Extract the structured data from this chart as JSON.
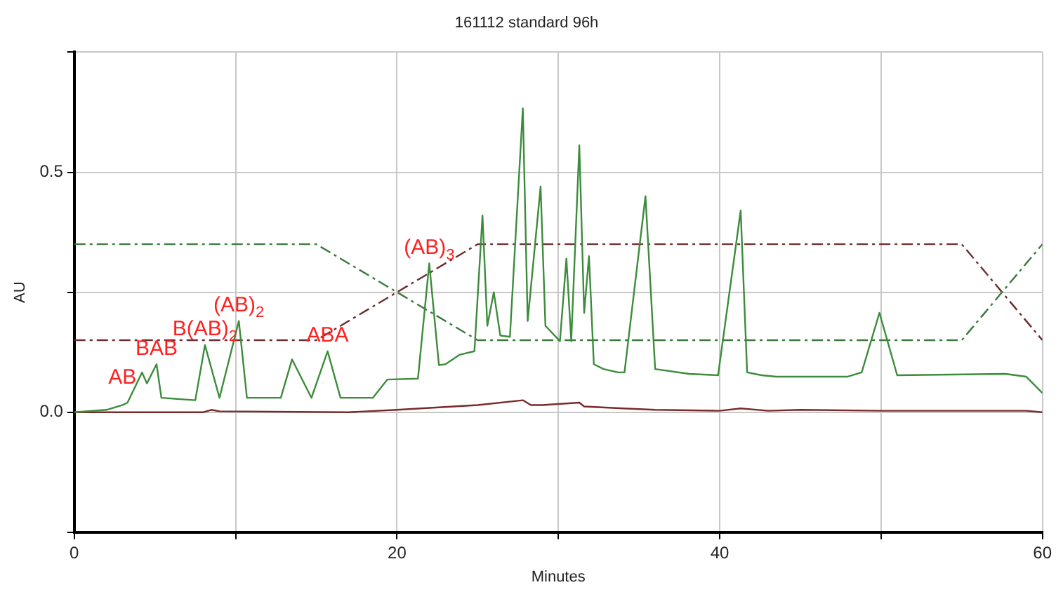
{
  "chart_data": {
    "type": "line",
    "title": "161112 standard 96h",
    "xlabel": "Minutes",
    "ylabel": "AU",
    "xlim": [
      0,
      60
    ],
    "ylim": [
      -0.25,
      0.75
    ],
    "xticks": [
      0,
      {
        "value": 10,
        "label": null
      },
      20,
      {
        "value": 30,
        "label": null
      },
      40,
      {
        "value": 50,
        "label": null
      },
      60
    ],
    "yticks": [
      {
        "value": -0.25,
        "label": null
      },
      {
        "value": 0,
        "label": "0.0"
      },
      {
        "value": 0.25,
        "label": null
      },
      0.5,
      {
        "value": 0.75,
        "label": null
      }
    ],
    "grid": true,
    "legend": false,
    "marker": "none",
    "series": [
      {
        "color": "#3c8c3c",
        "line_style": "solid",
        "x": [
          0,
          2,
          3,
          3.3,
          4.2,
          4.5,
          5.1,
          5.4,
          7.5,
          8.1,
          9.0,
          10.2,
          10.7,
          12.8,
          13.5,
          14.7,
          15.7,
          16.5,
          18.5,
          19.4,
          21.3,
          22.0,
          22.6,
          23,
          23.9,
          24.8,
          25.3,
          25.6,
          26.0,
          26.4,
          27.0,
          27.8,
          28.1,
          28.9,
          29.2,
          30.1,
          30.5,
          30.8,
          31.3,
          31.6,
          31.9,
          32.2,
          32.8,
          33.7,
          34.1,
          35.4,
          36.0,
          38.1,
          39.9,
          41.3,
          41.7,
          42.6,
          43.5,
          47.9,
          48.8,
          49.9,
          51.0,
          57.7,
          59.0,
          60
        ],
        "values": [
          0,
          0.005,
          0.015,
          0.02,
          0.083,
          0.06,
          0.1,
          0.03,
          0.025,
          0.14,
          0.03,
          0.19,
          0.03,
          0.03,
          0.11,
          0.03,
          0.127,
          0.03,
          0.03,
          0.068,
          0.07,
          0.31,
          0.098,
          0.1,
          0.12,
          0.127,
          0.41,
          0.18,
          0.25,
          0.16,
          0.157,
          0.633,
          0.19,
          0.47,
          0.18,
          0.148,
          0.32,
          0.148,
          0.556,
          0.207,
          0.325,
          0.1,
          0.09,
          0.083,
          0.083,
          0.45,
          0.09,
          0.08,
          0.077,
          0.42,
          0.083,
          0.077,
          0.074,
          0.074,
          0.083,
          0.207,
          0.077,
          0.08,
          0.074,
          0.04
        ]
      },
      {
        "color": "#7a2a2a",
        "line_style": "solid",
        "x": [
          0,
          8,
          8.5,
          9,
          17,
          20,
          25,
          27.8,
          28.3,
          29,
          31.3,
          31.6,
          34,
          36,
          40,
          41.3,
          43,
          45,
          50,
          59,
          60
        ],
        "values": [
          0,
          0,
          0.005,
          0.002,
          0,
          0.005,
          0.015,
          0.025,
          0.015,
          0.015,
          0.02,
          0.012,
          0.008,
          0.005,
          0.003,
          0.008,
          0.003,
          0.005,
          0.003,
          0.003,
          0
        ]
      },
      {
        "color": "#3a7a3a",
        "line_style": "dashed",
        "x": [
          0,
          15,
          25,
          55,
          60
        ],
        "values": [
          0.35,
          0.35,
          0.15,
          0.15,
          0.35
        ]
      },
      {
        "color": "#6b2d2d",
        "line_style": "dashed",
        "x": [
          0,
          15,
          25,
          55,
          60
        ],
        "values": [
          0.15,
          0.15,
          0.35,
          0.35,
          0.15
        ]
      }
    ],
    "annotations": [
      {
        "text": "AB",
        "x": 4.2,
        "y": 0.083
      },
      {
        "text": "BAB",
        "x": 5.1,
        "y": 0.1
      },
      {
        "text": "B(AB)$_{2}$",
        "x": 8.1,
        "y": 0.14
      },
      {
        "text": "(AB)$_{2}$",
        "x": 10.2,
        "y": 0.19
      },
      {
        "text": "ABA",
        "x": 15.7,
        "y": 0.127
      },
      {
        "text": "(AB)$_{3}$",
        "x": 22.0,
        "y": 0.31
      }
    ]
  }
}
